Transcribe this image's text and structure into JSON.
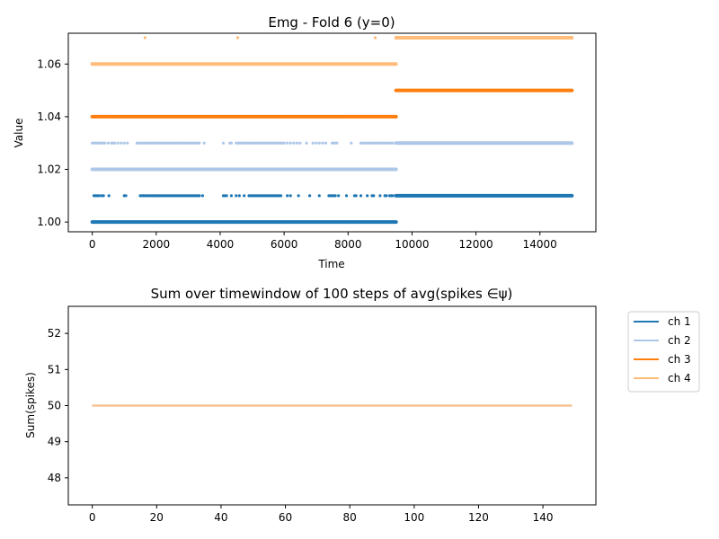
{
  "colors": {
    "ch1": "#1f77b4",
    "ch2": "#aec7e8",
    "ch3": "#ff7f0e",
    "ch4": "#ffbb78"
  },
  "chart_data": [
    {
      "type": "scatter",
      "title": "Emg - Fold 6 (y=0)",
      "xlabel": "Time",
      "ylabel": "Value",
      "xlim": [
        -750,
        15750
      ],
      "ylim": [
        0.9963,
        1.0717
      ],
      "xticks": [
        0,
        2000,
        4000,
        6000,
        8000,
        10000,
        12000,
        14000
      ],
      "xtick_labels": [
        "0",
        "2000",
        "4000",
        "6000",
        "8000",
        "10000",
        "12000",
        "14000"
      ],
      "yticks": [
        1.0,
        1.02,
        1.04,
        1.06
      ],
      "ytick_labels": [
        "1.00",
        "1.02",
        "1.04",
        "1.06"
      ],
      "grid": false,
      "series": [
        {
          "color": "#1f77b4",
          "segments": [
            {
              "x": [
                0,
                9500
              ],
              "y": 1.0
            },
            {
              "x": [
                9500,
                15000
              ],
              "y": 1.01
            }
          ],
          "sparse_y": 1.01,
          "sparse_x": [
            50,
            100,
            150,
            200,
            280,
            350,
            520,
            1000,
            1050,
            1500,
            1550,
            1600,
            1650,
            1700,
            1750,
            1800,
            1850,
            1900,
            1950,
            2000,
            2050,
            2100,
            2150,
            2200,
            2250,
            2300,
            2350,
            2400,
            2450,
            2500,
            2550,
            2600,
            2650,
            2700,
            2750,
            2800,
            2850,
            2900,
            2950,
            3000,
            3050,
            3100,
            3150,
            3200,
            3250,
            3300,
            3350,
            3450,
            4100,
            4150,
            4200,
            4350,
            4500,
            4600,
            4750,
            4900,
            4950,
            5000,
            5050,
            5100,
            5150,
            5200,
            5250,
            5300,
            5350,
            5400,
            5450,
            5500,
            5550,
            5600,
            5650,
            5700,
            5750,
            5800,
            5850,
            5900,
            6100,
            6200,
            6450,
            6800,
            7100,
            7400,
            7450,
            7500,
            7550,
            7600,
            7700,
            7950,
            8200,
            8250,
            8400,
            8600,
            8750,
            8800,
            9000,
            9150,
            9200,
            9300,
            9350,
            9400
          ]
        },
        {
          "color": "#aec7e8",
          "segments": [
            {
              "x": [
                0,
                9500
              ],
              "y": 1.02
            },
            {
              "x": [
                9500,
                15000
              ],
              "y": 1.03
            }
          ],
          "sparse_y": 1.03,
          "sparse_x": [
            0,
            50,
            100,
            150,
            200,
            250,
            300,
            350,
            400,
            500,
            600,
            650,
            700,
            800,
            900,
            1000,
            1100,
            1400,
            1450,
            1500,
            1550,
            1600,
            1650,
            1700,
            1750,
            1800,
            1850,
            1900,
            1950,
            2000,
            2050,
            2100,
            2150,
            2200,
            2250,
            2300,
            2350,
            2400,
            2450,
            2500,
            2550,
            2600,
            2650,
            2700,
            2750,
            2800,
            2850,
            2900,
            2950,
            3000,
            3050,
            3100,
            3150,
            3200,
            3250,
            3300,
            3350,
            3500,
            4100,
            4300,
            4350,
            4500,
            4550,
            4600,
            4650,
            4700,
            4750,
            4800,
            4850,
            4900,
            4950,
            5000,
            5050,
            5100,
            5150,
            5200,
            5250,
            5300,
            5350,
            5400,
            5450,
            5500,
            5550,
            5600,
            5650,
            5700,
            5750,
            5800,
            5850,
            5900,
            5950,
            6000,
            6100,
            6200,
            6300,
            6400,
            6500,
            6700,
            6900,
            7000,
            7100,
            7200,
            7300,
            7500,
            7550,
            7600,
            7650,
            8100,
            8400,
            8450,
            8500,
            8550,
            8600,
            8650,
            8700,
            8750,
            8800,
            8850,
            8900,
            8950,
            9000,
            9050,
            9100,
            9150,
            9200,
            9250,
            9300,
            9350,
            9400
          ]
        },
        {
          "color": "#ff7f0e",
          "segments": [
            {
              "x": [
                0,
                9500
              ],
              "y": 1.04
            },
            {
              "x": [
                9500,
                15000
              ],
              "y": 1.05
            }
          ],
          "sparse_y": 1.05,
          "sparse_x": []
        },
        {
          "color": "#ffbb78",
          "segments": [
            {
              "x": [
                0,
                9500
              ],
              "y": 1.06
            },
            {
              "x": [
                9500,
                15000
              ],
              "y": 1.07
            }
          ],
          "sparse_y": 1.07,
          "sparse_x": [
            1650,
            4550,
            8850
          ]
        }
      ]
    },
    {
      "type": "line",
      "title": "Sum over timewindow of 100 steps of avg(spikes ∈ψ)",
      "xlabel": "",
      "ylabel": "Sum(spikes)",
      "xlim": [
        -7.45,
        156.45
      ],
      "ylim": [
        47.25,
        52.75
      ],
      "xticks": [
        0,
        20,
        40,
        60,
        80,
        100,
        120,
        140
      ],
      "xtick_labels": [
        "0",
        "20",
        "40",
        "60",
        "80",
        "100",
        "120",
        "140"
      ],
      "yticks": [
        48,
        49,
        50,
        51,
        52
      ],
      "ytick_labels": [
        "48",
        "49",
        "50",
        "51",
        "52"
      ],
      "legend_position": "outside-top-right",
      "series": [
        {
          "name": "ch 1",
          "color": "#1f77b4",
          "x": [
            0,
            149
          ],
          "values": [
            50,
            50
          ]
        },
        {
          "name": "ch 2",
          "color": "#aec7e8",
          "x": [
            0,
            149
          ],
          "values": [
            50,
            50
          ]
        },
        {
          "name": "ch 3",
          "color": "#ff7f0e",
          "x": [
            0,
            149
          ],
          "values": [
            50,
            50
          ]
        },
        {
          "name": "ch 4",
          "color": "#ffbb78",
          "x": [
            0,
            149
          ],
          "values": [
            50,
            50
          ]
        }
      ]
    }
  ]
}
